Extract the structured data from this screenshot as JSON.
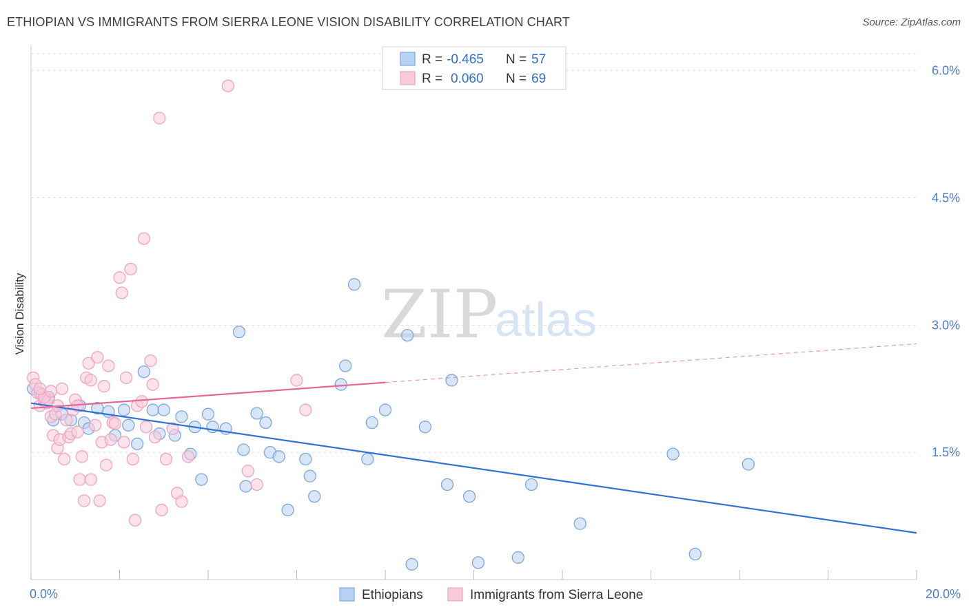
{
  "header": {
    "title": "ETHIOPIAN VS IMMIGRANTS FROM SIERRA LEONE VISION DISABILITY CORRELATION CHART",
    "source": "Source: ZipAtlas.com"
  },
  "watermark": {
    "part1": "ZIP",
    "part2": "atlas"
  },
  "chart_data": {
    "type": "scatter",
    "title": "ETHIOPIAN VS IMMIGRANTS FROM SIERRA LEONE VISION DISABILITY CORRELATION CHART",
    "xlabel": "",
    "ylabel": "Vision Disability",
    "xlim": [
      0,
      20
    ],
    "ylim": [
      0,
      6.2
    ],
    "x_ticks": [
      0,
      2,
      4,
      6,
      8,
      10,
      12,
      14,
      16,
      18,
      20
    ],
    "x_tick_labels": [
      {
        "value": 0,
        "label": "0.0%"
      },
      {
        "value": 20,
        "label": "20.0%"
      }
    ],
    "y_tick_labels": [
      {
        "value": 1.5,
        "label": "1.5%"
      },
      {
        "value": 3.0,
        "label": "3.0%"
      },
      {
        "value": 4.5,
        "label": "4.5%"
      },
      {
        "value": 6.0,
        "label": "6.0%"
      }
    ],
    "grid": true,
    "legend_position": "top-center",
    "stats": [
      {
        "r_label": "R =",
        "r_value": "-0.465",
        "n_label": "N =",
        "n_value": "57"
      },
      {
        "r_label": "R =",
        "r_value": "0.060",
        "n_label": "N =",
        "n_value": "69"
      }
    ],
    "series": [
      {
        "name": "Ethiopians",
        "color": "#7aa7e0",
        "fill": "#b8d2f3",
        "line_color": "#2f73d2",
        "trend": {
          "x0": 0,
          "y0": 2.08,
          "x1": 20,
          "y1": 0.55,
          "solid_until": 20
        },
        "points": [
          [
            0.05,
            2.25
          ],
          [
            0.2,
            2.2
          ],
          [
            0.4,
            2.15
          ],
          [
            0.5,
            1.88
          ],
          [
            0.7,
            1.95
          ],
          [
            0.9,
            1.88
          ],
          [
            1.1,
            2.05
          ],
          [
            1.2,
            1.85
          ],
          [
            1.3,
            1.78
          ],
          [
            1.5,
            2.02
          ],
          [
            1.75,
            1.98
          ],
          [
            1.9,
            1.7
          ],
          [
            2.1,
            2.0
          ],
          [
            2.2,
            1.82
          ],
          [
            2.4,
            1.6
          ],
          [
            2.55,
            2.45
          ],
          [
            2.75,
            2.0
          ],
          [
            2.9,
            1.72
          ],
          [
            3.0,
            2.0
          ],
          [
            3.25,
            1.7
          ],
          [
            3.4,
            1.92
          ],
          [
            3.6,
            1.48
          ],
          [
            3.7,
            1.8
          ],
          [
            3.85,
            1.18
          ],
          [
            4.0,
            1.95
          ],
          [
            4.1,
            1.8
          ],
          [
            4.4,
            1.78
          ],
          [
            4.7,
            2.92
          ],
          [
            4.8,
            1.53
          ],
          [
            4.85,
            1.1
          ],
          [
            5.1,
            1.96
          ],
          [
            5.3,
            1.85
          ],
          [
            5.4,
            1.5
          ],
          [
            5.6,
            1.45
          ],
          [
            5.8,
            0.82
          ],
          [
            6.2,
            1.42
          ],
          [
            6.3,
            1.22
          ],
          [
            6.4,
            0.98
          ],
          [
            7.0,
            2.3
          ],
          [
            7.1,
            2.52
          ],
          [
            7.3,
            3.48
          ],
          [
            7.6,
            1.42
          ],
          [
            7.7,
            1.85
          ],
          [
            8.0,
            2.0
          ],
          [
            8.5,
            2.88
          ],
          [
            8.6,
            0.18
          ],
          [
            8.9,
            1.8
          ],
          [
            9.4,
            1.12
          ],
          [
            9.5,
            2.35
          ],
          [
            9.9,
            0.98
          ],
          [
            10.1,
            0.2
          ],
          [
            11.0,
            0.26
          ],
          [
            11.3,
            1.12
          ],
          [
            12.4,
            0.66
          ],
          [
            14.5,
            1.48
          ],
          [
            15.0,
            0.3
          ],
          [
            16.2,
            1.36
          ]
        ]
      },
      {
        "name": "Immigrants from Sierra Leone",
        "color": "#f0a3bd",
        "fill": "#f9cbdb",
        "line_color": "#e4679a",
        "trend": {
          "x0": 0,
          "y0": 2.02,
          "x1": 20,
          "y1": 2.78,
          "solid_until": 8.0
        },
        "points": [
          [
            0.05,
            2.38
          ],
          [
            0.1,
            2.3
          ],
          [
            0.15,
            2.2
          ],
          [
            0.2,
            2.05
          ],
          [
            0.25,
            2.18
          ],
          [
            0.3,
            2.1
          ],
          [
            0.35,
            2.08
          ],
          [
            0.4,
            2.12
          ],
          [
            0.45,
            1.92
          ],
          [
            0.5,
            1.7
          ],
          [
            0.55,
            1.95
          ],
          [
            0.6,
            1.55
          ],
          [
            0.65,
            1.65
          ],
          [
            0.7,
            2.25
          ],
          [
            0.75,
            1.42
          ],
          [
            0.8,
            1.88
          ],
          [
            0.85,
            1.68
          ],
          [
            0.9,
            1.72
          ],
          [
            0.95,
            2.0
          ],
          [
            1.0,
            2.12
          ],
          [
            1.05,
            1.74
          ],
          [
            1.1,
            1.18
          ],
          [
            1.15,
            1.45
          ],
          [
            1.2,
            0.93
          ],
          [
            1.25,
            2.38
          ],
          [
            1.3,
            2.55
          ],
          [
            1.35,
            2.35
          ],
          [
            1.45,
            1.82
          ],
          [
            1.5,
            2.62
          ],
          [
            1.55,
            0.93
          ],
          [
            1.6,
            1.62
          ],
          [
            1.65,
            2.28
          ],
          [
            1.7,
            1.35
          ],
          [
            1.75,
            2.52
          ],
          [
            1.8,
            1.65
          ],
          [
            1.85,
            1.85
          ],
          [
            1.9,
            1.84
          ],
          [
            2.0,
            3.56
          ],
          [
            2.05,
            3.38
          ],
          [
            2.1,
            1.62
          ],
          [
            2.15,
            2.38
          ],
          [
            2.25,
            3.66
          ],
          [
            2.3,
            1.42
          ],
          [
            2.35,
            0.7
          ],
          [
            2.4,
            2.05
          ],
          [
            2.5,
            2.1
          ],
          [
            2.55,
            4.02
          ],
          [
            2.6,
            1.8
          ],
          [
            2.7,
            2.58
          ],
          [
            2.75,
            2.3
          ],
          [
            2.8,
            1.68
          ],
          [
            2.9,
            5.44
          ],
          [
            2.95,
            0.82
          ],
          [
            3.05,
            1.42
          ],
          [
            3.2,
            1.78
          ],
          [
            3.3,
            1.02
          ],
          [
            3.4,
            0.92
          ],
          [
            3.55,
            1.45
          ],
          [
            4.45,
            5.82
          ],
          [
            4.9,
            1.28
          ],
          [
            5.1,
            1.12
          ],
          [
            6.0,
            2.35
          ],
          [
            6.2,
            2.0
          ],
          [
            0.3,
            2.15
          ],
          [
            0.45,
            2.22
          ],
          [
            1.05,
            2.05
          ],
          [
            0.2,
            2.25
          ],
          [
            0.6,
            2.05
          ],
          [
            1.35,
            1.18
          ]
        ]
      }
    ]
  },
  "legend_bottom": {
    "items": [
      {
        "label": "Ethiopians"
      },
      {
        "label": "Immigrants from Sierra Leone"
      }
    ]
  }
}
